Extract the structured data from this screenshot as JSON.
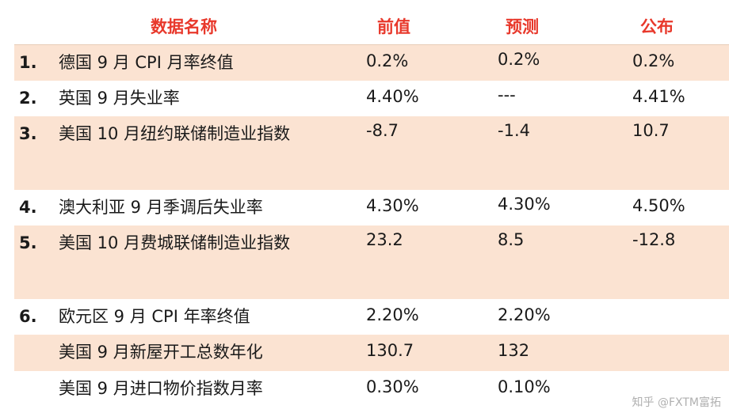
{
  "header": {
    "name": "数据名称",
    "prev": "前值",
    "forecast": "预测",
    "published": "公布"
  },
  "rows": [
    {
      "num": "1.",
      "name": "德国 9 月 CPI 月率终值",
      "prev": "0.2%",
      "forecast": "0.2%",
      "published": "0.2%"
    },
    {
      "num": "2.",
      "name": "英国 9 月失业率",
      "prev": "4.40%",
      "forecast": "---",
      "published": "4.41%"
    },
    {
      "num": "3.",
      "name": "美国 10 月纽约联储制造业指数",
      "prev": "-8.7",
      "forecast": "-1.4",
      "published": "10.7"
    },
    {
      "num": "4.",
      "name": "澳大利亚 9 月季调后失业率",
      "prev": "4.30%",
      "forecast": "4.30%",
      "published": "4.50%"
    },
    {
      "num": "5.",
      "name": "美国 10 月费城联储制造业指数",
      "prev": "23.2",
      "forecast": "8.5",
      "published": "-12.8"
    },
    {
      "num": "6.",
      "name": "欧元区 9 月 CPI 年率终值",
      "prev": "2.20%",
      "forecast": "2.20%",
      "published": ""
    },
    {
      "num": "",
      "name": "美国 9 月新屋开工总数年化",
      "prev": "130.7",
      "forecast": "132",
      "published": ""
    },
    {
      "num": "",
      "name": "美国 9 月进口物价指数月率",
      "prev": "0.30%",
      "forecast": "0.10%",
      "published": ""
    }
  ],
  "watermark": "知乎 @FXTM富拓"
}
